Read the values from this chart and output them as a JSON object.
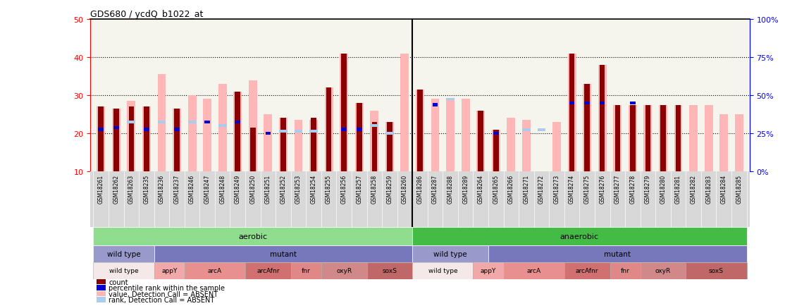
{
  "title": "GDS680 / ycdQ_b1022_at",
  "samples": [
    "GSM18261",
    "GSM18262",
    "GSM18263",
    "GSM18235",
    "GSM18236",
    "GSM18237",
    "GSM18246",
    "GSM18247",
    "GSM18248",
    "GSM18249",
    "GSM18250",
    "GSM18251",
    "GSM18252",
    "GSM18253",
    "GSM18254",
    "GSM18255",
    "GSM18256",
    "GSM18257",
    "GSM18258",
    "GSM18259",
    "GSM18260",
    "GSM18286",
    "GSM18287",
    "GSM18288",
    "GSM18289",
    "GSM18264",
    "GSM18265",
    "GSM18266",
    "GSM18271",
    "GSM18272",
    "GSM18273",
    "GSM18274",
    "GSM18275",
    "GSM18276",
    "GSM18277",
    "GSM18278",
    "GSM18279",
    "GSM18280",
    "GSM18281",
    "GSM18282",
    "GSM18283",
    "GSM18284",
    "GSM18285"
  ],
  "count_values": [
    27,
    26.5,
    27,
    27,
    null,
    26.5,
    null,
    null,
    null,
    31,
    21.5,
    null,
    24,
    null,
    24,
    32,
    41,
    28,
    23,
    23,
    null,
    31.5,
    null,
    null,
    null,
    26,
    21,
    null,
    null,
    null,
    null,
    41,
    33,
    38,
    27.5,
    27.5,
    27.5,
    27.5,
    27.5,
    null,
    null,
    null,
    null
  ],
  "pink_values": [
    27,
    26.5,
    28.5,
    27,
    35.5,
    26.5,
    30,
    29,
    33,
    31,
    34,
    25,
    24,
    23.5,
    23.5,
    32,
    41,
    28,
    26,
    23,
    41,
    31.5,
    29,
    29,
    29,
    26,
    21,
    24,
    23.5,
    null,
    23,
    41,
    33,
    38,
    27.5,
    27.5,
    27.5,
    27.5,
    27.5,
    27.5,
    27.5,
    25,
    25
  ],
  "blue_values": [
    21,
    21.5,
    null,
    21,
    null,
    21,
    null,
    23,
    null,
    23,
    null,
    20,
    null,
    null,
    null,
    null,
    21,
    21,
    null,
    null,
    null,
    null,
    27.5,
    null,
    null,
    null,
    20,
    null,
    null,
    null,
    null,
    28,
    28,
    28,
    null,
    28,
    null,
    null,
    null,
    null,
    null,
    null,
    null
  ],
  "light_blue_values": [
    null,
    null,
    23,
    null,
    23,
    null,
    23,
    null,
    22,
    null,
    null,
    null,
    20.5,
    20.5,
    20.5,
    null,
    null,
    null,
    22,
    20,
    null,
    null,
    null,
    29,
    null,
    null,
    null,
    null,
    21,
    21,
    null,
    null,
    null,
    null,
    null,
    null,
    null,
    null,
    null,
    null,
    null,
    null,
    null
  ],
  "ylim": [
    10,
    50
  ],
  "yticks": [
    10,
    20,
    30,
    40,
    50
  ],
  "right_ytick_labels": [
    "0%",
    "25%",
    "50%",
    "75%",
    "100%"
  ],
  "hlines": [
    20,
    30,
    40
  ],
  "genotype": [
    {
      "label": "wild type",
      "start": 0,
      "end": 3,
      "color": "#f5e8e8"
    },
    {
      "label": "appY",
      "start": 4,
      "end": 5,
      "color": "#f0a8a8"
    },
    {
      "label": "arcA",
      "start": 6,
      "end": 9,
      "color": "#e89090"
    },
    {
      "label": "arcAfnr",
      "start": 10,
      "end": 12,
      "color": "#d07070"
    },
    {
      "label": "fnr",
      "start": 13,
      "end": 14,
      "color": "#e08888"
    },
    {
      "label": "oxyR",
      "start": 15,
      "end": 17,
      "color": "#d08888"
    },
    {
      "label": "soxS",
      "start": 18,
      "end": 20,
      "color": "#c06868"
    },
    {
      "label": "wild type",
      "start": 21,
      "end": 24,
      "color": "#f5e8e8"
    },
    {
      "label": "appY",
      "start": 25,
      "end": 26,
      "color": "#f0a8a8"
    },
    {
      "label": "arcA",
      "start": 27,
      "end": 30,
      "color": "#e89090"
    },
    {
      "label": "arcAfnr",
      "start": 31,
      "end": 33,
      "color": "#d07070"
    },
    {
      "label": "fnr",
      "start": 34,
      "end": 35,
      "color": "#e08888"
    },
    {
      "label": "oxyR",
      "start": 36,
      "end": 38,
      "color": "#d08888"
    },
    {
      "label": "soxS",
      "start": 39,
      "end": 42,
      "color": "#c06868"
    }
  ],
  "legend_items": [
    {
      "label": "count",
      "color": "#8b0000"
    },
    {
      "label": "percentile rank within the sample",
      "color": "#0000cc"
    },
    {
      "label": "value, Detection Call = ABSENT",
      "color": "#ffb6b6"
    },
    {
      "label": "rank, Detection Call = ABSENT",
      "color": "#aaccee"
    }
  ],
  "colors": {
    "count_bar": "#8b0000",
    "pink_bar": "#ffb6b6",
    "blue_bar": "#0000cc",
    "light_blue_bar": "#aaccee",
    "background": "#ffffff",
    "axis_bg": "#f5f5ee",
    "xtick_bg": "#d8d8d8",
    "aerobic": "#90dd90",
    "anaerobic": "#44bb44",
    "strain_wt": "#9999cc",
    "strain_mut": "#7777bb"
  },
  "sep_index": 20,
  "aerobic_count": 21,
  "n_total": 43
}
